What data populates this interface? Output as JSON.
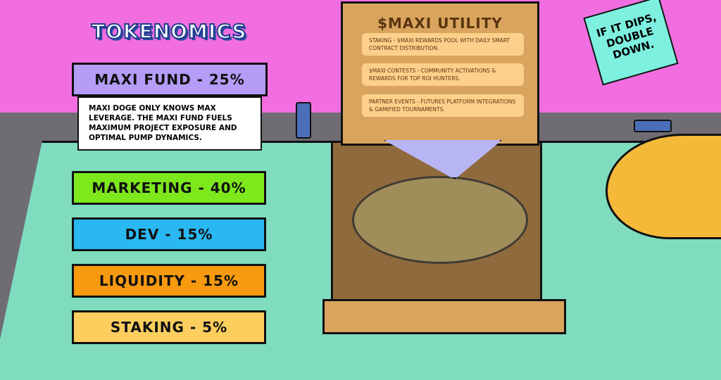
{
  "tokenomics": {
    "title": "TOKENOMICS",
    "items": [
      {
        "label": "MAXI FUND - 25%",
        "color": "#b49cf7"
      },
      {
        "label": "MARKETING - 40%",
        "color": "#7de81c"
      },
      {
        "label": "DEV - 15%",
        "color": "#29b8f2"
      },
      {
        "label": "LIQUIDITY - 15%",
        "color": "#f79a0f"
      },
      {
        "label": "STAKING - 5%",
        "color": "#fcce5e"
      }
    ],
    "description": "MAXI DOGE ONLY KNOWS MAX LEVERAGE. THE MAXI FUND FUELS MAXIMUM PROJECT EXPOSURE AND OPTIMAL PUMP DYNAMICS."
  },
  "utility": {
    "title": "$MAXI UTILITY",
    "items": [
      "STAKING - $MAXI REWARDS POOL WITH DAILY SMART CONTRACT DISTRIBUTION.",
      "$MAXI CONTESTS - COMMUNITY ACTIVATIONS & REWARDS FOR TOP ROI HUNTERS.",
      "PARTNER EVENTS - FUTURES PLATFORM INTEGRATIONS & GAMIFIED TOURNAMENTS."
    ]
  },
  "note": "IF IT DIPS, DOUBLE DOWN."
}
